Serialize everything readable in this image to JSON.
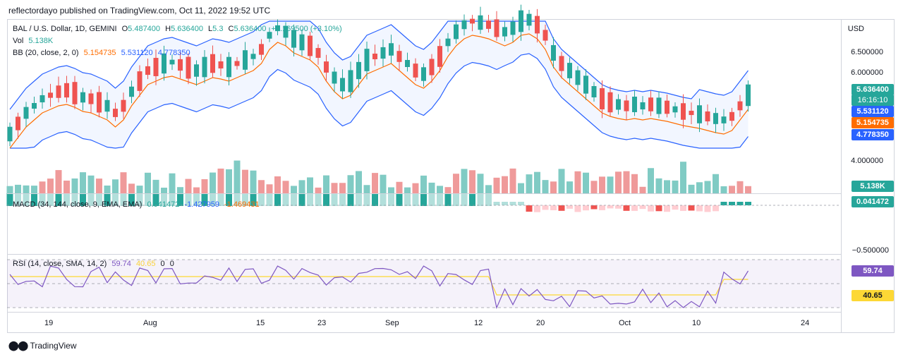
{
  "publisher": "reflectordayo published on TradingView.com, Oct 11, 2022 19:52 UTC",
  "symbol": {
    "name": "BAL / U.S. Dollar, 1D, GEMINI",
    "open_label": "O",
    "open": "5.487400",
    "high_label": "H",
    "high": "5.636400",
    "low_label": "L",
    "low": "5.3",
    "close_label": "C",
    "close": "5.636400",
    "change": "+0.169500 (+3.10%)"
  },
  "volume": {
    "label": "Vol",
    "value": "5.138K"
  },
  "bb": {
    "label": "BB (20, close, 2, 0)",
    "basis": "5.154735",
    "upper": "5.531120",
    "lower": "4.778350"
  },
  "macd": {
    "label": "MACD (34, 144, close, 9, EMA, EMA)",
    "hist": "0.041472",
    "macd": "-1.427959",
    "signal": "-1.469431"
  },
  "rsi": {
    "label": "RSI (14, close, SMA, 14, 2)",
    "rsi": "59.74",
    "ma": "40.65",
    "v3": "0",
    "v4": "0"
  },
  "price_axis": {
    "currency": "USD",
    "ticks": [
      "6.500000",
      "6.000000",
      "4.000000"
    ],
    "macd_tick": "−0.500000"
  },
  "tags": {
    "last_price": "5.636400",
    "countdown": "16:16:10",
    "bb_upper": "5.531120",
    "bb_basis": "5.154735",
    "bb_lower": "4.778350",
    "volume": "5.138K",
    "macd": "0.041472",
    "rsi": "59.74",
    "rsi_ma": "40.65"
  },
  "time_axis": [
    "19",
    "Aug",
    "15",
    "23",
    "Sep",
    "12",
    "20",
    "Oct",
    "10",
    "24"
  ],
  "footer": "TradingView",
  "colors": {
    "up": "#26a69a",
    "down": "#ef5350",
    "bb_band": "#2962ff",
    "bb_basis": "#ff6d00",
    "rsi": "#7e57c2",
    "rsi_ma": "#fdd835"
  }
}
